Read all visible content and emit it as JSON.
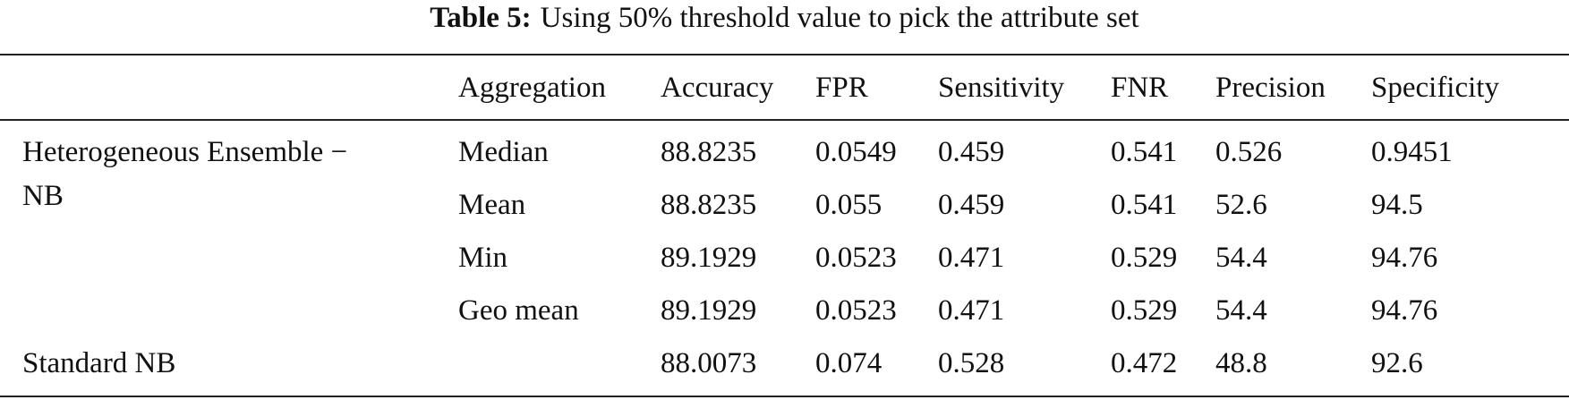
{
  "title": {
    "label": "Table 5:",
    "text": "Using 50% threshold value to pick the attribute set"
  },
  "table": {
    "columns": [
      "Aggregation",
      "Accuracy",
      "FPR",
      "Sensitivity",
      "FNR",
      "Precision",
      "Specificity"
    ],
    "groups": [
      {
        "label": [
          "Heterogeneous Ensemble −",
          "NB"
        ],
        "rows": [
          [
            "Median",
            "88.8235",
            "0.0549",
            "0.459",
            "0.541",
            "0.526",
            "0.9451"
          ],
          [
            "Mean",
            "88.8235",
            "0.055",
            "0.459",
            "0.541",
            "52.6",
            "94.5"
          ],
          [
            "Min",
            "89.1929",
            "0.0523",
            "0.471",
            "0.529",
            "54.4",
            "94.76"
          ],
          [
            "Geo mean",
            "89.1929",
            "0.0523",
            "0.471",
            "0.529",
            "54.4",
            "94.76"
          ]
        ]
      },
      {
        "label": [
          "Standard NB"
        ],
        "rows": [
          [
            null,
            "88.0073",
            "0.074",
            "0.528",
            "0.472",
            "48.8",
            "92.6"
          ]
        ]
      }
    ]
  }
}
